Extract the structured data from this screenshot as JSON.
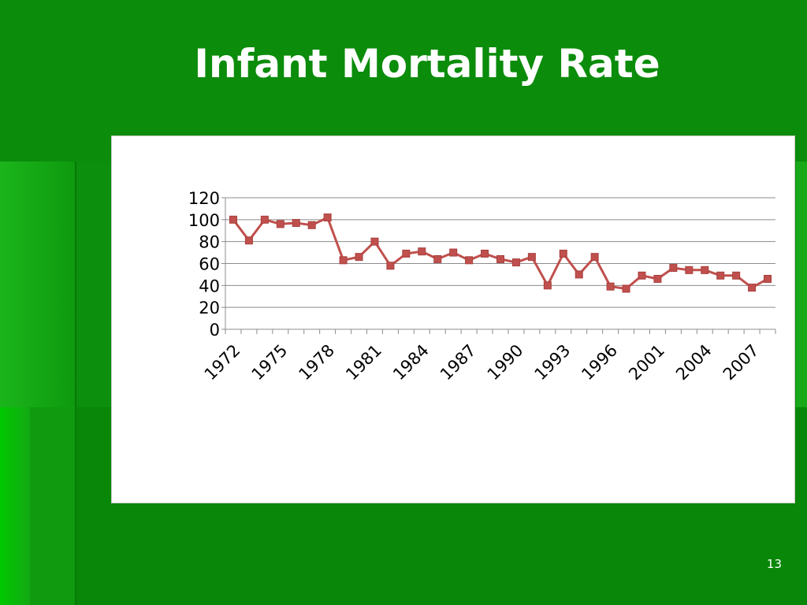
{
  "slide": {
    "title": "Infant Mortality Rate",
    "page_number": "13"
  },
  "colors": {
    "background": "#0a8a0a",
    "series_line": "#c0504d",
    "grid": "#8c8c8c"
  },
  "chart_data": {
    "type": "line",
    "title": "",
    "xlabel": "",
    "ylabel": "",
    "ylim": [
      0,
      120
    ],
    "yticks": [
      0,
      20,
      40,
      60,
      80,
      100,
      120
    ],
    "grid": true,
    "legend": "none",
    "x_tick_labels": [
      "1972",
      "1975",
      "1978",
      "1981",
      "1984",
      "1987",
      "1990",
      "1993",
      "1996",
      "2001",
      "2004",
      "2007"
    ],
    "series": [
      {
        "values": [
          100,
          81,
          100,
          96,
          97,
          95,
          102,
          63,
          66,
          80,
          58,
          69,
          71,
          64,
          70,
          63,
          69,
          64,
          61,
          66,
          40,
          69,
          50,
          66,
          39,
          37,
          49,
          46,
          56,
          54,
          54,
          49,
          49,
          38,
          46
        ]
      }
    ]
  }
}
